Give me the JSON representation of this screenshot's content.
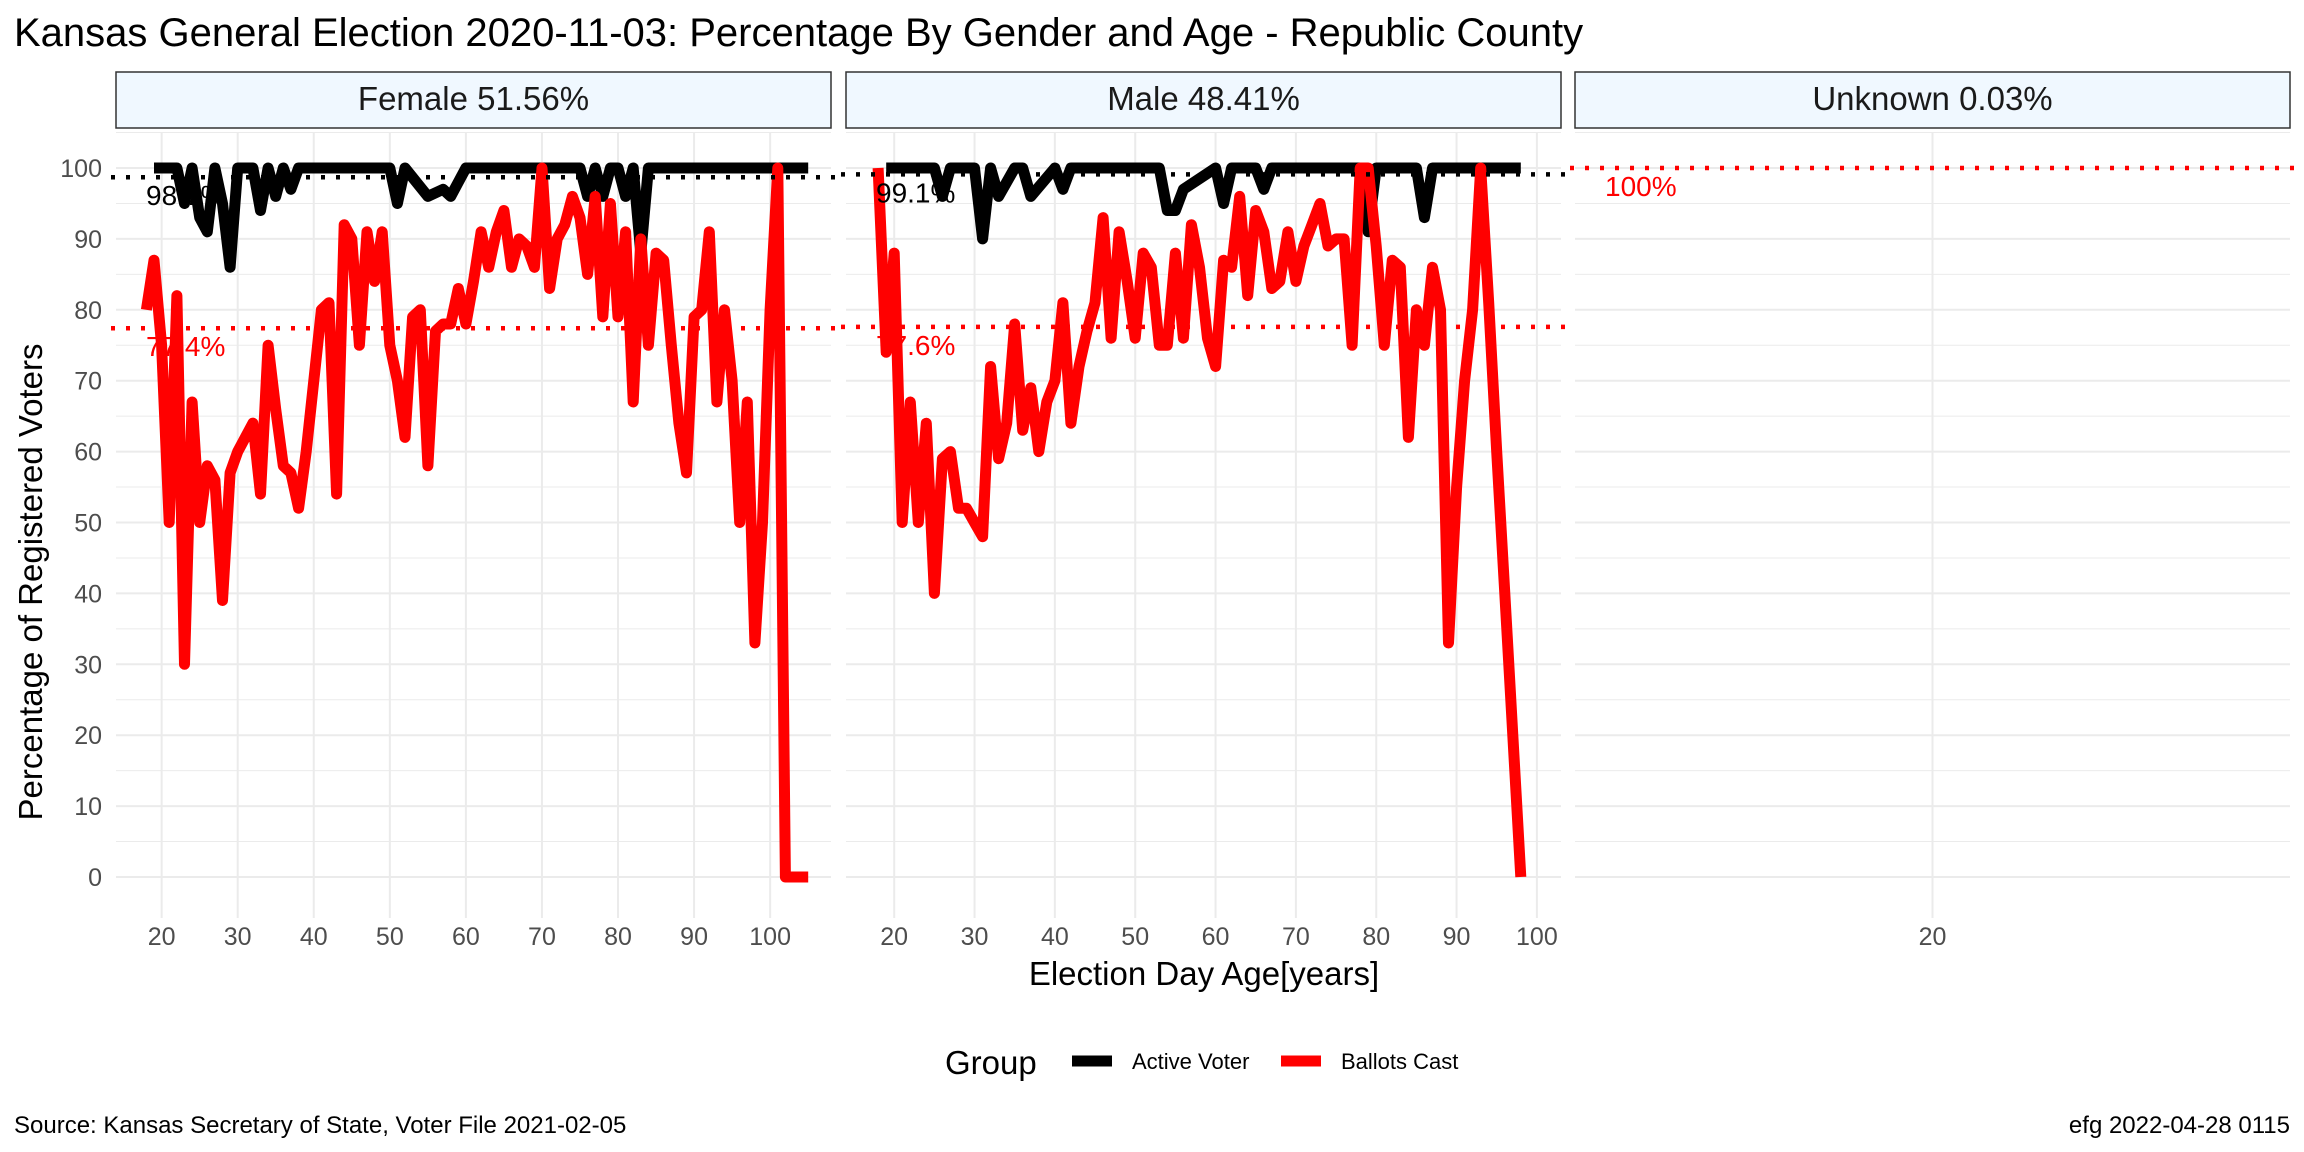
{
  "title": "Kansas General Election 2020-11-03:  Percentage By Gender and Age - Republic County",
  "caption_left": "Source:  Kansas Secretary of State, Voter File  2021-02-05",
  "caption_right": "efg 2022-04-28 0115",
  "colors": {
    "active": "#000000",
    "ballots": "#ff0000",
    "strip_fill": "#f0f8ff",
    "grid": "#ebebeb"
  },
  "chart_data": {
    "type": "line",
    "xlabel": "Election Day Age[years]",
    "ylabel": "Percentage of Registered Voters",
    "ylim": [
      0,
      100
    ],
    "yticks": [
      0,
      10,
      20,
      30,
      40,
      50,
      60,
      70,
      80,
      90,
      100
    ],
    "grid": true,
    "legend": {
      "title": "Group",
      "position": "bottom",
      "entries": [
        {
          "name": "Active Voter",
          "color": "#000000"
        },
        {
          "name": "Ballots Cast",
          "color": "#ff0000"
        }
      ]
    },
    "panels": [
      {
        "strip": "Female 51.56%",
        "xlim": [
          14,
          108
        ],
        "xticks": [
          20,
          30,
          40,
          50,
          60,
          70,
          80,
          90,
          100
        ],
        "ref_lines": [
          {
            "series": "Active Voter",
            "value": 98.7,
            "label": "98.7%"
          },
          {
            "series": "Ballots Cast",
            "value": 77.4,
            "label": "77.4%"
          }
        ],
        "series": [
          {
            "name": "Active Voter",
            "x": [
              19,
              20,
              21,
              22,
              23,
              24,
              25,
              26,
              27,
              28,
              29,
              30,
              31,
              32,
              33,
              34,
              35,
              36,
              37,
              38,
              39,
              40,
              45,
              50,
              51,
              52,
              55,
              57,
              58,
              59,
              60,
              70,
              75,
              76,
              77,
              78,
              79,
              80,
              81,
              82,
              83,
              84,
              85,
              90,
              95,
              100,
              105
            ],
            "y": [
              100,
              100,
              100,
              100,
              95,
              100,
              93,
              91,
              100,
              95,
              86,
              100,
              100,
              100,
              94,
              100,
              96,
              100,
              97,
              100,
              100,
              100,
              100,
              100,
              95,
              100,
              96,
              97,
              96,
              98,
              100,
              100,
              100,
              96,
              100,
              96,
              100,
              100,
              96,
              100,
              88,
              100,
              100,
              100,
              100,
              100,
              100
            ]
          },
          {
            "name": "Ballots Cast",
            "x": [
              18,
              19,
              20,
              21,
              22,
              23,
              24,
              25,
              26,
              27,
              28,
              29,
              30,
              32,
              33,
              34,
              35,
              36,
              37,
              38,
              39,
              40,
              41,
              42,
              43,
              44,
              45,
              46,
              47,
              48,
              49,
              50,
              51,
              52,
              53,
              54,
              55,
              56,
              57,
              58,
              59,
              60,
              61,
              62,
              63,
              64,
              65,
              66,
              67,
              68,
              69,
              70,
              71,
              72,
              73,
              74,
              75,
              76,
              77,
              78,
              79,
              80,
              81,
              82,
              83,
              84,
              85,
              86,
              87,
              88,
              89,
              90,
              91,
              92,
              93,
              94,
              95,
              96,
              97,
              98,
              99,
              100,
              101,
              102,
              103,
              104,
              105
            ],
            "y": [
              80,
              87,
              75,
              50,
              82,
              30,
              67,
              50,
              58,
              56,
              39,
              57,
              60,
              64,
              54,
              75,
              66,
              58,
              57,
              52,
              60,
              70,
              80,
              81,
              54,
              92,
              90,
              75,
              91,
              84,
              91,
              75,
              70,
              62,
              79,
              80,
              58,
              77,
              78,
              78,
              83,
              78,
              84,
              91,
              86,
              91,
              94,
              86,
              90,
              89,
              86,
              100,
              83,
              90,
              92,
              96,
              93,
              85,
              96,
              79,
              95,
              79,
              91,
              67,
              90,
              75,
              88,
              87,
              75,
              64,
              57,
              79,
              80,
              91,
              67,
              80,
              70,
              50,
              67,
              33,
              50,
              80,
              100,
              0,
              0,
              0,
              0
            ]
          }
        ]
      },
      {
        "strip": "Male 48.41%",
        "xlim": [
          14,
          103
        ],
        "xticks": [
          20,
          30,
          40,
          50,
          60,
          70,
          80,
          90,
          100
        ],
        "ref_lines": [
          {
            "series": "Active Voter",
            "value": 99.1,
            "label": "99.1%"
          },
          {
            "series": "Ballots Cast",
            "value": 77.6,
            "label": "77.6%"
          }
        ],
        "series": [
          {
            "name": "Active Voter",
            "x": [
              19,
              20,
              25,
              26,
              27,
              30,
              31,
              32,
              33,
              35,
              36,
              37,
              40,
              41,
              42,
              45,
              50,
              53,
              54,
              55,
              56,
              60,
              61,
              62,
              65,
              66,
              67,
              70,
              75,
              78,
              79,
              80,
              84,
              85,
              86,
              87,
              90,
              92,
              93,
              94,
              98
            ],
            "y": [
              100,
              100,
              100,
              96,
              100,
              100,
              90,
              100,
              96,
              100,
              100,
              96,
              100,
              97,
              100,
              100,
              100,
              100,
              94,
              94,
              97,
              100,
              95,
              100,
              100,
              97,
              100,
              100,
              100,
              100,
              91,
              100,
              100,
              100,
              93,
              100,
              100,
              100,
              100,
              100,
              100
            ]
          },
          {
            "name": "Ballots Cast",
            "x": [
              18,
              19,
              20,
              21,
              22,
              23,
              24,
              25,
              26,
              27,
              28,
              29,
              30,
              31,
              32,
              33,
              34,
              35,
              36,
              37,
              38,
              39,
              40,
              41,
              42,
              43,
              44,
              45,
              46,
              47,
              48,
              49,
              50,
              51,
              52,
              53,
              54,
              55,
              56,
              57,
              58,
              59,
              60,
              61,
              62,
              63,
              64,
              65,
              66,
              67,
              68,
              69,
              70,
              71,
              72,
              73,
              74,
              75,
              76,
              77,
              78,
              79,
              80,
              81,
              82,
              83,
              84,
              85,
              86,
              87,
              88,
              89,
              90,
              91,
              92,
              93,
              94,
              95,
              96,
              97,
              98
            ],
            "y": [
              100,
              74,
              88,
              50,
              67,
              50,
              64,
              40,
              59,
              60,
              52,
              52,
              50,
              48,
              72,
              59,
              64,
              78,
              63,
              69,
              60,
              67,
              70,
              81,
              64,
              72,
              77,
              81,
              93,
              76,
              91,
              84,
              76,
              88,
              86,
              75,
              75,
              88,
              76,
              92,
              86,
              76,
              72,
              87,
              86,
              96,
              82,
              94,
              91,
              83,
              84,
              91,
              84,
              89,
              92,
              95,
              89,
              90,
              90,
              75,
              100,
              100,
              89,
              75,
              87,
              86,
              62,
              80,
              75,
              86,
              80,
              33,
              55,
              70,
              80,
              100,
              81,
              60,
              40,
              20,
              0
            ]
          }
        ]
      },
      {
        "strip": "Unknown 0.03%",
        "xlim": [
          19,
          21
        ],
        "xticks": [
          20
        ],
        "ref_lines": [
          {
            "series": "Ballots Cast",
            "value": 100,
            "label": "100%"
          }
        ],
        "series": []
      }
    ]
  }
}
